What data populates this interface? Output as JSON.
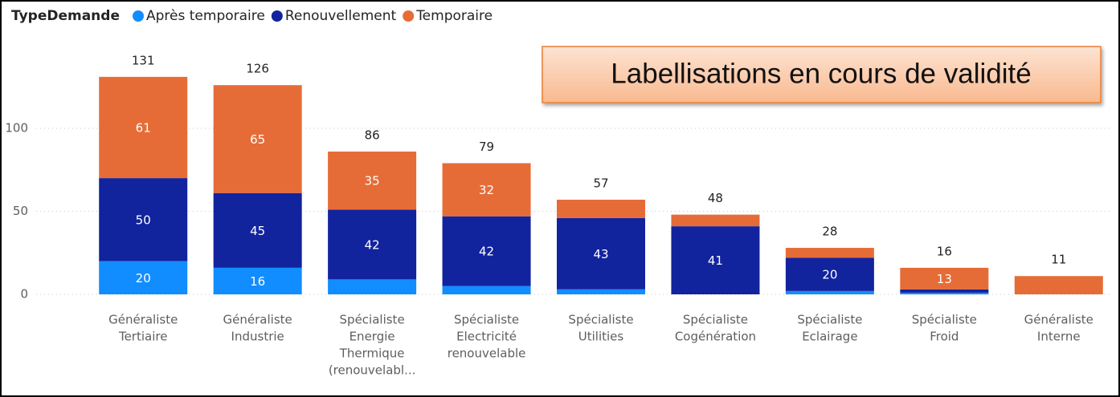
{
  "chart_data": {
    "type": "stacked_bar",
    "legend_title": "TypeDemande",
    "annotation": "Labellisations en cours de validité",
    "categories": [
      [
        "Généraliste",
        "Tertiaire"
      ],
      [
        "Généraliste",
        "Industrie"
      ],
      [
        "Spécialiste",
        "Energie",
        "Thermique",
        "(renouvelabl..."
      ],
      [
        "Spécialiste",
        "Electricité",
        "renouvelable"
      ],
      [
        "Spécialiste",
        "Utilities"
      ],
      [
        "Spécialiste",
        "Cogénération"
      ],
      [
        "Spécialiste",
        "Eclairage"
      ],
      [
        "Spécialiste",
        "Froid"
      ],
      [
        "Généraliste",
        "Interne"
      ]
    ],
    "series": [
      {
        "name": "Après temporaire",
        "color": "#118dff",
        "values": [
          20,
          16,
          9,
          5,
          3,
          0,
          2,
          1,
          0
        ]
      },
      {
        "name": "Renouvellement",
        "color": "#12239e",
        "values": [
          50,
          45,
          42,
          42,
          43,
          41,
          20,
          2,
          0
        ]
      },
      {
        "name": "Temporaire",
        "color": "#e66c37",
        "values": [
          61,
          65,
          35,
          32,
          11,
          7,
          6,
          13,
          11
        ]
      }
    ],
    "totals": [
      131,
      126,
      86,
      79,
      57,
      48,
      28,
      16,
      11
    ],
    "ylim": [
      0,
      150
    ],
    "yticks": [
      0,
      50,
      100
    ],
    "grid": true
  }
}
